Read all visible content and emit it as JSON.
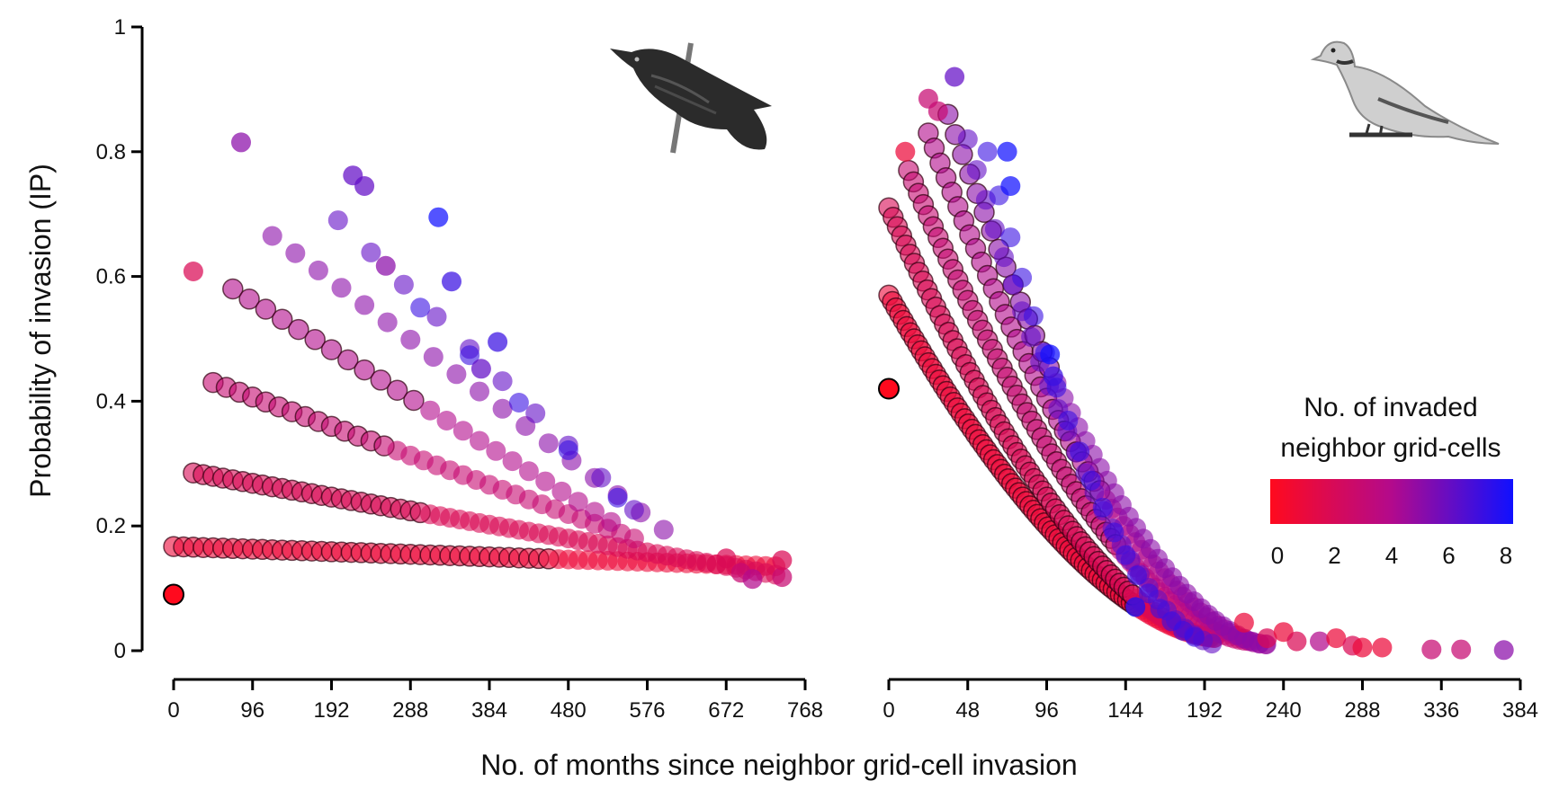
{
  "figure": {
    "xlabel": "No. of months since neighbor grid-cell invasion",
    "ylabel": "Probability of invasion (IP)",
    "legend": {
      "title_line1": "No. of invaded",
      "title_line2": "neighbor grid-cells",
      "ticks": [
        "0",
        "2",
        "4",
        "6",
        "8"
      ],
      "range": [
        0,
        8
      ],
      "color_low": "#ff0a1e",
      "color_mid": "#b30a8c",
      "color_high": "#1010ff"
    },
    "colors": {
      "axis": "#000000",
      "outline": "#000000"
    }
  },
  "chart_data": [
    {
      "type": "scatter",
      "panel": "left",
      "icon": "starling-bird-icon",
      "title": "",
      "xlim": [
        0,
        768
      ],
      "ylim": [
        0,
        1
      ],
      "xticks": [
        "0",
        "96",
        "192",
        "288",
        "384",
        "480",
        "576",
        "672",
        "768"
      ],
      "yticks": [
        "0",
        "0.2",
        "0.4",
        "0.6",
        "0.8",
        "1"
      ],
      "color_by": "No. of invaded neighbor grid-cells",
      "outlined_points": [
        [
          0,
          0.09,
          0
        ]
      ],
      "families": [
        {
          "n": 1,
          "x0": 0,
          "y0": 0.167,
          "x1": 740,
          "y1": 0.135,
          "step": 12,
          "dark_until": 460,
          "alpha": 0.6
        },
        {
          "n": 2,
          "x0": 24,
          "y0": 0.285,
          "x1": 740,
          "y1": 0.12,
          "step": 12,
          "dark_until": 300,
          "alpha": 0.6
        },
        {
          "n": 3,
          "x0": 48,
          "y0": 0.43,
          "x1": 560,
          "y1": 0.18,
          "step": 16,
          "dark_until": 260,
          "alpha": 0.6
        },
        {
          "n": 4,
          "x0": 72,
          "y0": 0.58,
          "x1": 540,
          "y1": 0.2,
          "step": 20,
          "dark_until": 300,
          "alpha": 0.6
        },
        {
          "n": 5,
          "x0": 120,
          "y0": 0.665,
          "x1": 600,
          "y1": 0.19,
          "step": 28,
          "dark_until": 0,
          "alpha": 0.6
        },
        {
          "n": 6,
          "x0": 200,
          "y0": 0.69,
          "x1": 580,
          "y1": 0.2,
          "step": 40,
          "dark_until": 0,
          "alpha": 0.6
        },
        {
          "n": 7,
          "x0": 300,
          "y0": 0.55,
          "x1": 560,
          "y1": 0.22,
          "step": 60,
          "dark_until": 0,
          "alpha": 0.6
        }
      ],
      "extra_points": [
        [
          24,
          0.608,
          2
        ],
        [
          82,
          0.815,
          5
        ],
        [
          218,
          0.762,
          6
        ],
        [
          232,
          0.745,
          6
        ],
        [
          258,
          0.617,
          5
        ],
        [
          322,
          0.695,
          8
        ],
        [
          338,
          0.592,
          7
        ],
        [
          374,
          0.452,
          6
        ],
        [
          394,
          0.495,
          7
        ],
        [
          672,
          0.148,
          2
        ],
        [
          690,
          0.125,
          3
        ],
        [
          704,
          0.115,
          4
        ],
        [
          740,
          0.118,
          3
        ],
        [
          740,
          0.145,
          2
        ]
      ]
    },
    {
      "type": "scatter",
      "panel": "right",
      "icon": "dove-bird-icon",
      "title": "",
      "xlim": [
        0,
        384
      ],
      "ylim": [
        0,
        1
      ],
      "xticks": [
        "0",
        "48",
        "96",
        "144",
        "192",
        "240",
        "288",
        "336",
        "384"
      ],
      "yticks": [
        "0",
        "0.2",
        "0.4",
        "0.6",
        "0.8",
        "1"
      ],
      "color_by": "No. of invaded neighbor grid-cells",
      "outlined_points": [
        [
          0,
          0.42,
          0
        ]
      ],
      "families": [
        {
          "n": 1,
          "x0": 0,
          "y0": 0.57,
          "x1": 200,
          "y1": 0.02,
          "step": 2.2,
          "dark_until": 150,
          "alpha": 0.6
        },
        {
          "n": 2,
          "x0": 0,
          "y0": 0.71,
          "x1": 200,
          "y1": 0.02,
          "step": 2.6,
          "dark_until": 150,
          "alpha": 0.6
        },
        {
          "n": 3,
          "x0": 12,
          "y0": 0.77,
          "x1": 220,
          "y1": 0.015,
          "step": 3,
          "dark_until": 140,
          "alpha": 0.6
        },
        {
          "n": 4,
          "x0": 24,
          "y0": 0.83,
          "x1": 230,
          "y1": 0.01,
          "step": 3.6,
          "dark_until": 130,
          "alpha": 0.6
        },
        {
          "n": 5,
          "x0": 36,
          "y0": 0.86,
          "x1": 230,
          "y1": 0.01,
          "step": 4.4,
          "dark_until": 100,
          "alpha": 0.6
        },
        {
          "n": 6,
          "x0": 48,
          "y0": 0.82,
          "x1": 200,
          "y1": 0.01,
          "step": 5.5,
          "dark_until": 0,
          "alpha": 0.6
        },
        {
          "n": 7,
          "x0": 60,
          "y0": 0.8,
          "x1": 190,
          "y1": 0.02,
          "step": 7,
          "dark_until": 0,
          "alpha": 0.6
        }
      ],
      "extra_points": [
        [
          10,
          0.8,
          1
        ],
        [
          24,
          0.885,
          3
        ],
        [
          30,
          0.865,
          3
        ],
        [
          40,
          0.92,
          6
        ],
        [
          72,
          0.8,
          8
        ],
        [
          74,
          0.745,
          8
        ],
        [
          98,
          0.475,
          8
        ],
        [
          100,
          0.44,
          7
        ],
        [
          150,
          0.07,
          8
        ],
        [
          216,
          0.045,
          1
        ],
        [
          230,
          0.02,
          2
        ],
        [
          240,
          0.03,
          1
        ],
        [
          248,
          0.015,
          2
        ],
        [
          262,
          0.015,
          4
        ],
        [
          272,
          0.02,
          1
        ],
        [
          282,
          0.008,
          2
        ],
        [
          288,
          0.005,
          1
        ],
        [
          300,
          0.005,
          1
        ],
        [
          330,
          0.002,
          3
        ],
        [
          348,
          0.002,
          3
        ],
        [
          374,
          0.001,
          5
        ]
      ]
    }
  ]
}
